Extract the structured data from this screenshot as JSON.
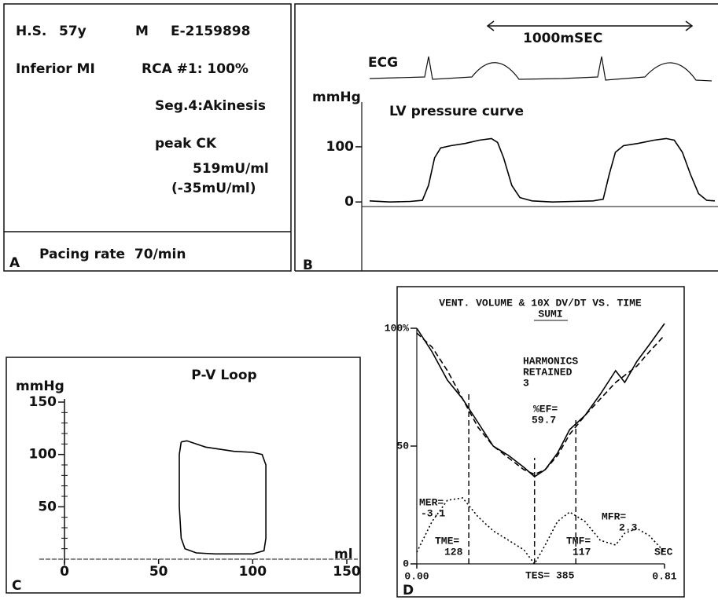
{
  "panel_a": {
    "label": "A",
    "lines": [
      "H.S.",
      "57y",
      "M",
      "E-2159898",
      "Inferior MI",
      "RCA #1: 100%",
      "Seg.4:Akinesis",
      "peak CK",
      "519mU/ml",
      "(-35mU/ml)"
    ],
    "footer": "Pacing rate  70/min"
  },
  "chart_data": [
    {
      "type": "line",
      "panel_label": "B",
      "ylabel": "mmHg",
      "annotations": [
        "1000mSEC",
        "ECG",
        "LV pressure curve"
      ],
      "xlim": [
        0,
        1700
      ],
      "ylim": [
        -125,
        181
      ],
      "yticks": [
        0,
        100
      ],
      "x": [
        0,
        100,
        200,
        260,
        290,
        320,
        350,
        400,
        470,
        540,
        600,
        630,
        660,
        700,
        740,
        800,
        900,
        1000,
        1100,
        1150,
        1180,
        1210,
        1250,
        1320,
        1400,
        1460,
        1500,
        1540,
        1580,
        1620,
        1660,
        1700
      ],
      "series": [
        {
          "color": "#000000",
          "style": "solid",
          "values": [
            2,
            0,
            1,
            3,
            30,
            80,
            98,
            102,
            106,
            112,
            115,
            108,
            80,
            30,
            8,
            2,
            0,
            1,
            2,
            5,
            50,
            90,
            102,
            106,
            112,
            115,
            112,
            90,
            50,
            15,
            3,
            2
          ]
        }
      ]
    },
    {
      "type": "line",
      "panel_label": "C",
      "title": "P-V Loop",
      "xlabel": "ml",
      "ylabel": "mmHg",
      "xlim": [
        0,
        150
      ],
      "ylim": [
        0,
        150
      ],
      "xticks": [
        0,
        50,
        100,
        150
      ],
      "yticks": [
        50,
        100,
        150
      ],
      "x": [
        62,
        65,
        75,
        90,
        100,
        105,
        107,
        107,
        107,
        106,
        100,
        90,
        80,
        70,
        64,
        62,
        61,
        61,
        61,
        62
      ],
      "series": [
        {
          "color": "#000000",
          "style": "solid",
          "values": [
            112,
            113,
            107,
            103,
            102,
            100,
            90,
            60,
            20,
            8,
            5,
            5,
            5,
            6,
            10,
            20,
            50,
            80,
            100,
            112
          ]
        }
      ]
    },
    {
      "type": "line",
      "panel_label": "D",
      "title": "VENT. VOLUME & 10X DV/DT VS. TIME",
      "subtitle": "SUMI",
      "annotations": [
        "HARMONICS",
        "RETAINED",
        "3",
        "%EF=",
        "59.7",
        "MER=",
        "-3.1",
        "MFR=",
        "2.3",
        "TME=",
        "128",
        "TMF=",
        "117",
        "TES= 385",
        "SEC"
      ],
      "xlim": [
        0,
        0.81
      ],
      "ylim": [
        0,
        100
      ],
      "xticks": [
        {
          "value": 0,
          "label": "0.00"
        },
        {
          "value": 0.81,
          "label": "0.81"
        }
      ],
      "yticks": [
        0,
        50,
        {
          "value": 100,
          "label": "100%"
        }
      ],
      "x": [
        0,
        0.05,
        0.1,
        0.15,
        0.2,
        0.25,
        0.3,
        0.35,
        0.385,
        0.42,
        0.46,
        0.5,
        0.55,
        0.6,
        0.65,
        0.68,
        0.72,
        0.76,
        0.81
      ],
      "series": [
        {
          "color": "#000000",
          "style": "solid",
          "values": [
            100,
            90,
            78,
            70,
            60,
            50,
            46,
            41,
            37,
            40,
            47,
            57,
            63,
            72,
            82,
            77,
            86,
            93,
            102
          ]
        },
        {
          "color": "#000000",
          "style": "dashed",
          "values": [
            98,
            92,
            82,
            70,
            58,
            50,
            45,
            40,
            38,
            40,
            46,
            55,
            63,
            70,
            77,
            80,
            84,
            90,
            97
          ]
        },
        {
          "color": "#000000",
          "style": "dotted",
          "values": [
            5,
            18,
            27,
            28,
            20,
            14,
            10,
            6,
            0,
            8,
            18,
            22,
            18,
            10,
            8,
            13,
            15,
            12,
            5
          ]
        }
      ],
      "vlines": [
        {
          "x": 0.17,
          "y": 72
        },
        {
          "x": 0.385,
          "y": 45
        },
        {
          "x": 0.52,
          "y": 62
        }
      ]
    }
  ]
}
